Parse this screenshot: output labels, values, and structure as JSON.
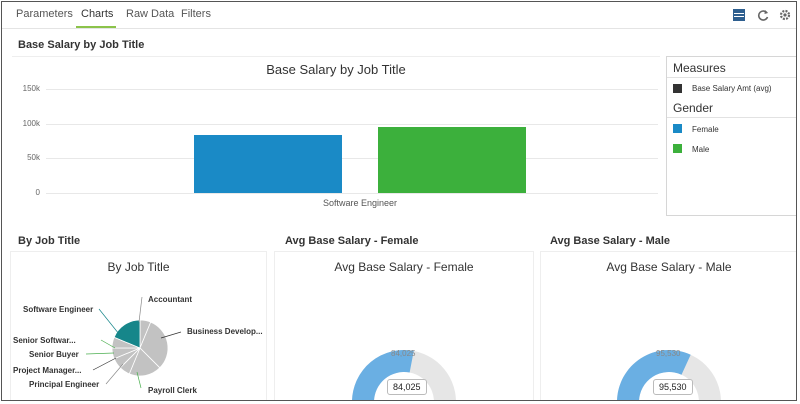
{
  "tabs": [
    {
      "label": "Parameters"
    },
    {
      "label": "Charts"
    },
    {
      "label": "Raw Data"
    },
    {
      "label": "Filters"
    }
  ],
  "toolbar": {
    "icons": [
      "layout-icon",
      "refresh-icon",
      "gear-icon"
    ]
  },
  "colors": {
    "female": "#1a8ac6",
    "male": "#3cb03c",
    "accent": "#8bc34a",
    "pie_teal": "#16868a",
    "pie_gray": "#c2c2c2",
    "gauge_fill": "#6aafe3",
    "gauge_track": "#e6e6e6"
  },
  "main": {
    "section_title": "Base Salary by Job Title"
  },
  "legend": {
    "measures_title": "Measures",
    "measure_label": "Base Salary Amt (avg)",
    "gender_title": "Gender",
    "female_label": "Female",
    "male_label": "Male"
  },
  "bottom": {
    "by_job_title_section": "By Job Title",
    "female_section": "Avg Base Salary - Female",
    "male_section": "Avg Base Salary - Male"
  },
  "chart_data": [
    {
      "type": "bar",
      "title": "Base Salary by Job Title",
      "categories": [
        "Software Engineer"
      ],
      "series": [
        {
          "name": "Female",
          "values": [
            84025
          ]
        },
        {
          "name": "Male",
          "values": [
            95530
          ]
        }
      ],
      "yticks": [
        "0",
        "50k",
        "100k",
        "150k"
      ],
      "ylim": [
        0,
        150000
      ],
      "grid": true,
      "legend": "right"
    },
    {
      "type": "pie",
      "title": "By Job Title",
      "labels": [
        "Accountant",
        "Business Develop...",
        "Payroll Clerk",
        "Principal Engineer",
        "Project Manager...",
        "Senior Buyer",
        "Senior Softwar...",
        "Software Engineer"
      ],
      "values": [
        1,
        5,
        3,
        1,
        1,
        1,
        1,
        3
      ],
      "highlight": "Software Engineer"
    },
    {
      "type": "gauge",
      "title": "Avg Base Salary - Female",
      "value": 84025,
      "value_label": "84,025",
      "max": 150000
    },
    {
      "type": "gauge",
      "title": "Avg Base Salary - Male",
      "value": 95530,
      "value_label": "95,530",
      "max": 150000
    }
  ]
}
